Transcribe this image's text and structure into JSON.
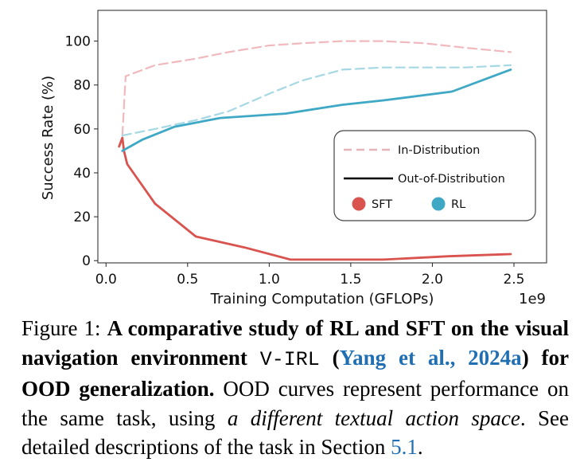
{
  "figure": {
    "label": "Figure 1:",
    "bold_1": "A comparative study of RL and SFT on the visual navigation environment",
    "env_name": "V-IRL",
    "cite_open": "(",
    "cite_text": "Yang et al., 2024a",
    "cite_close": ")",
    "bold_2": "for OOD generalization.",
    "text_1": "OOD curves represent performance on the same task, using",
    "italic_1": "a different textual action space",
    "text_2": ". See detailed descriptions of the task in Section",
    "section_ref": "5.1",
    "text_3": "."
  },
  "chart_data": {
    "type": "line",
    "xlabel": "Training Computation (GFLOPs)",
    "ylabel": "Success Rate (%)",
    "x_scale_label": "1e9",
    "xlim": [
      -0.05,
      2.7
    ],
    "ylim": [
      -1,
      114
    ],
    "xticks": [
      0.0,
      0.5,
      1.0,
      1.5,
      2.0,
      2.5
    ],
    "xtick_labels": [
      "0.0",
      "0.5",
      "1.0",
      "1.5",
      "2.0",
      "2.5"
    ],
    "yticks": [
      0,
      20,
      40,
      60,
      80,
      100
    ],
    "ytick_labels": [
      "0",
      "20",
      "40",
      "60",
      "80",
      "100"
    ],
    "colors": {
      "SFT": "#d9534f",
      "RL": "#3fa9c5",
      "SFT_light": "#f0b9bd",
      "RL_light": "#a6d8e3"
    },
    "legend": {
      "position": "lower-right",
      "in_dist": "In-Distribution",
      "ood": "Out-of-Distribution",
      "sft": "SFT",
      "rl": "RL"
    },
    "series": [
      {
        "name": "SFT In-Distribution",
        "method": "SFT",
        "style": "dashed",
        "x": [
          0.1,
          0.12,
          0.3,
          0.55,
          0.75,
          1.0,
          1.2,
          1.45,
          1.7,
          1.95,
          2.2,
          2.48
        ],
        "y": [
          57,
          84,
          89,
          92,
          95,
          98,
          99,
          100,
          100,
          99,
          97,
          95
        ]
      },
      {
        "name": "RL In-Distribution",
        "method": "RL",
        "style": "dashed",
        "x": [
          0.1,
          0.3,
          0.55,
          0.75,
          1.0,
          1.2,
          1.45,
          1.7,
          2.0,
          2.2,
          2.48
        ],
        "y": [
          57,
          60,
          64,
          68,
          76,
          82,
          87,
          88,
          88,
          88,
          89
        ]
      },
      {
        "name": "SFT Out-of-Distribution",
        "method": "SFT",
        "style": "solid",
        "x": [
          0.08,
          0.1,
          0.11,
          0.13,
          0.3,
          0.55,
          0.85,
          1.13,
          1.4,
          1.7,
          2.1,
          2.48
        ],
        "y": [
          52,
          56,
          50,
          44,
          26,
          11,
          6,
          0.5,
          0.5,
          0.5,
          2,
          3
        ]
      },
      {
        "name": "RL Out-of-Distribution",
        "method": "RL",
        "style": "solid",
        "x": [
          0.1,
          0.22,
          0.42,
          0.7,
          1.1,
          1.45,
          1.7,
          2.12,
          2.48
        ],
        "y": [
          50,
          55,
          61,
          65,
          67,
          71,
          73,
          77,
          87
        ]
      }
    ]
  }
}
